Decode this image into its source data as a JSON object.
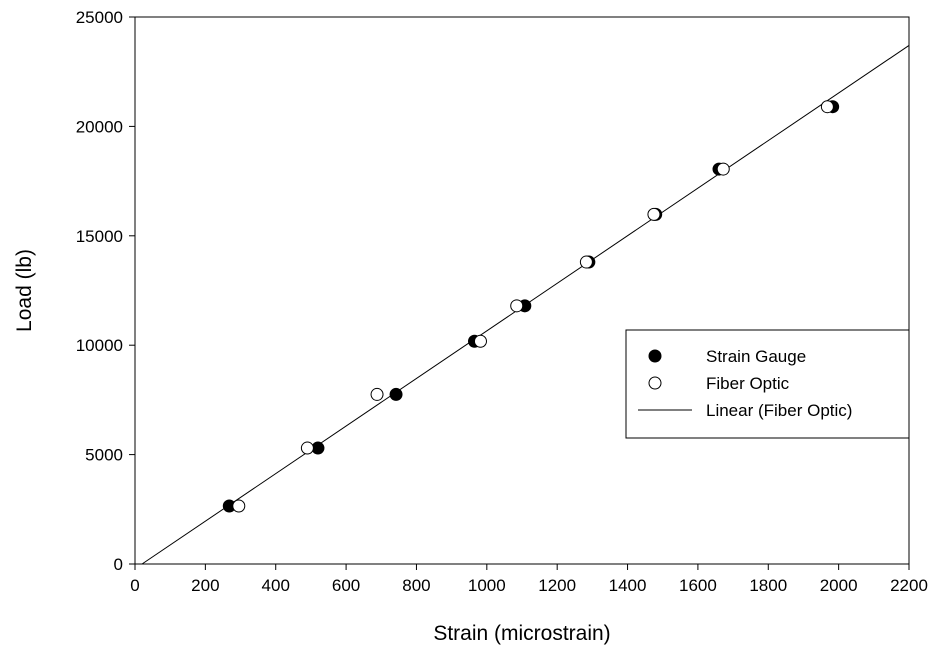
{
  "chart_data": {
    "type": "scatter",
    "title": "",
    "xlabel": "Strain (microstrain)",
    "ylabel": "Load (lb)",
    "xlim": [
      0,
      2200
    ],
    "ylim": [
      0,
      25000
    ],
    "xticks": [
      0,
      200,
      400,
      600,
      800,
      1000,
      1200,
      1400,
      1600,
      1800,
      2000,
      2200
    ],
    "yticks": [
      0,
      5000,
      10000,
      15000,
      20000,
      25000
    ],
    "grid": false,
    "legend_position": "right",
    "series": [
      {
        "name": "Strain Gauge",
        "marker": "filled-circle",
        "color": "#000000",
        "points": [
          [
            268,
            2650
          ],
          [
            520,
            5300
          ],
          [
            742,
            7750
          ],
          [
            965,
            10180
          ],
          [
            1108,
            11800
          ],
          [
            1290,
            13800
          ],
          [
            1480,
            15980
          ],
          [
            1660,
            18050
          ],
          [
            1983,
            20900
          ]
        ]
      },
      {
        "name": "Fiber Optic",
        "marker": "open-circle",
        "color": "#000000",
        "points": [
          [
            295,
            2650
          ],
          [
            490,
            5300
          ],
          [
            688,
            7750
          ],
          [
            982,
            10180
          ],
          [
            1085,
            11800
          ],
          [
            1283,
            13800
          ],
          [
            1475,
            15980
          ],
          [
            1672,
            18050
          ],
          [
            1968,
            20900
          ]
        ]
      },
      {
        "name": "Linear (Fiber Optic)",
        "marker": "line",
        "color": "#000000",
        "line": [
          [
            20,
            0
          ],
          [
            2200,
            23700
          ]
        ]
      }
    ]
  }
}
